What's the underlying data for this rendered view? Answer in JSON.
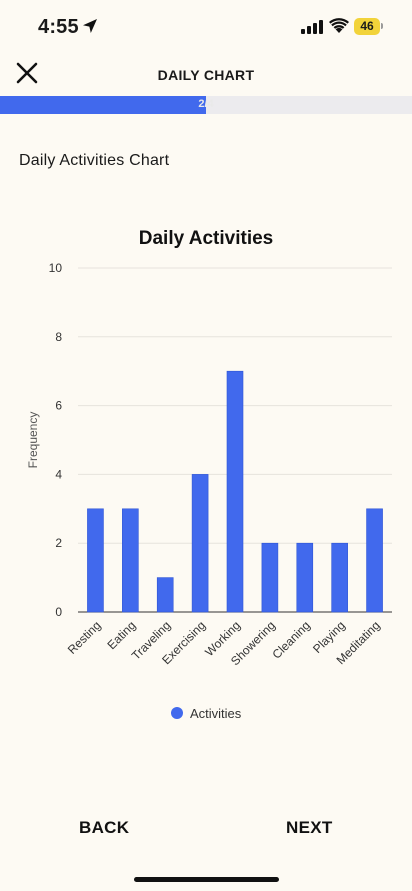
{
  "status_bar": {
    "time": "4:55",
    "battery": "46"
  },
  "header": {
    "title": "DAILY CHART"
  },
  "progress": {
    "label": "2/4",
    "value": 0.5
  },
  "section_title": "Daily Activities Chart",
  "chart_data": {
    "type": "bar",
    "title": "Daily Activities",
    "xlabel": "",
    "ylabel": "Frequency",
    "categories": [
      "Resting",
      "Eating",
      "Traveling",
      "Exercising",
      "Working",
      "Showering",
      "Cleaning",
      "Playing",
      "Meditating"
    ],
    "series": [
      {
        "name": "Activities",
        "values": [
          3,
          3,
          1,
          4,
          7,
          2,
          2,
          2,
          3
        ]
      }
    ],
    "ylim": [
      0,
      10
    ],
    "yticks": [
      "0",
      "2",
      "4",
      "6",
      "8",
      "10"
    ],
    "grid": true,
    "legend": "bottom",
    "color": "#4169ed"
  },
  "footer": {
    "back_label": "BACK",
    "next_label": "NEXT"
  }
}
